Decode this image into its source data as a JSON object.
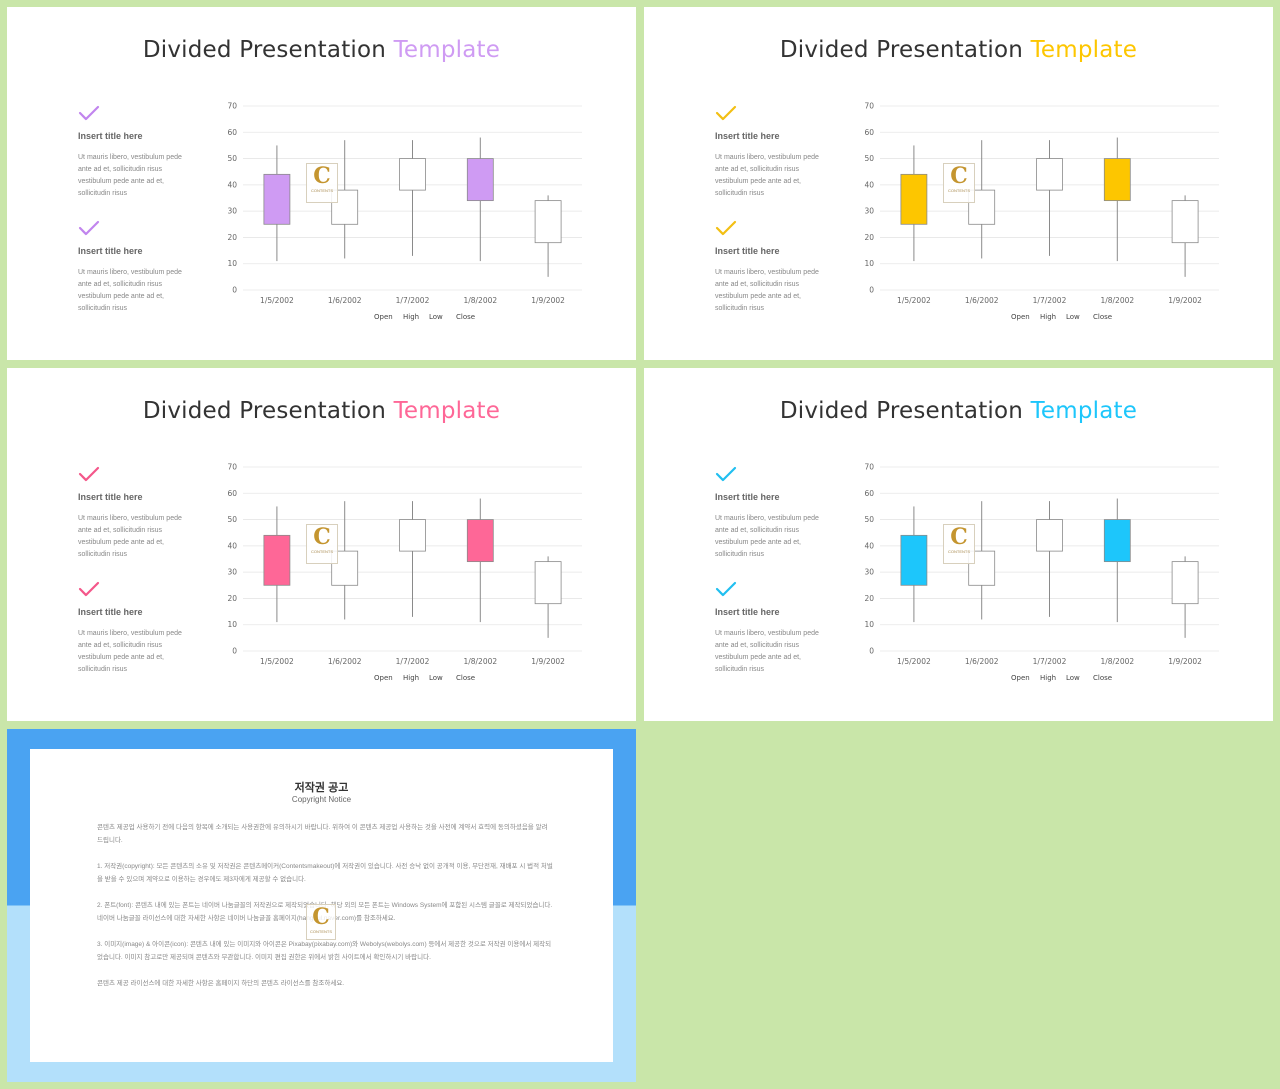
{
  "slides": [
    {
      "title_main": "Divided Presentation",
      "title_accent": "Template",
      "accent": "#cf9bf3",
      "accent_icon": "#c185ee",
      "items": [
        {
          "title": "Insert title here",
          "body": "Ut mauris libero, vestibulum pede ante ad et, sollicitudin risus vestibulum pede ante ad et, sollicitudin risus"
        },
        {
          "title": "Insert title here",
          "body": "Ut mauris libero, vestibulum pede ante ad et, sollicitudin risus vestibulum pede ante ad et, sollicitudin risus"
        }
      ]
    },
    {
      "title_main": "Divided Presentation",
      "title_accent": "Template",
      "accent": "#fdc600",
      "accent_icon": "#f3bf13",
      "items": [
        {
          "title": "Insert title here",
          "body": "Ut mauris libero, vestibulum pede ante ad et, sollicitudin risus vestibulum pede ante ad et, sollicitudin risus"
        },
        {
          "title": "Insert title here",
          "body": "Ut mauris libero, vestibulum pede ante ad et, sollicitudin risus vestibulum pede ante ad et, sollicitudin risus"
        }
      ]
    },
    {
      "title_main": "Divided Presentation",
      "title_accent": "Template",
      "accent": "#fe6797",
      "accent_icon": "#f4578a",
      "items": [
        {
          "title": "Insert title here",
          "body": "Ut mauris libero, vestibulum pede ante ad et, sollicitudin risus vestibulum pede ante ad et, sollicitudin risus"
        },
        {
          "title": "Insert title here",
          "body": "Ut mauris libero, vestibulum pede ante ad et, sollicitudin risus vestibulum pede ante ad et, sollicitudin risus"
        }
      ]
    },
    {
      "title_main": "Divided Presentation",
      "title_accent": "Template",
      "accent": "#1dc6fb",
      "accent_icon": "#21bff0",
      "items": [
        {
          "title": "Insert title here",
          "body": "Ut mauris libero, vestibulum pede ante ad et, sollicitudin risus vestibulum pede ante ad et, sollicitudin risus"
        },
        {
          "title": "Insert title here",
          "body": "Ut mauris libero, vestibulum pede ante ad et, sollicitudin risus vestibulum pede ante ad et, sollicitudin risus"
        }
      ]
    }
  ],
  "chart_data": {
    "type": "candlestick",
    "categories": [
      "1/5/2002",
      "1/6/2002",
      "1/7/2002",
      "1/8/2002",
      "1/9/2002"
    ],
    "open": [
      25,
      38,
      50,
      34,
      34
    ],
    "high": [
      55,
      57,
      57,
      58,
      36
    ],
    "low": [
      11,
      12,
      13,
      11,
      5
    ],
    "close": [
      44,
      25,
      38,
      50,
      18
    ],
    "ylim": [
      0,
      70
    ],
    "yticks": [
      "0",
      "10",
      "20",
      "30",
      "40",
      "50",
      "60",
      "70"
    ],
    "legend": [
      "Open",
      "High",
      "Low",
      "Close"
    ],
    "grid": true,
    "legend_position": "bottom"
  },
  "watermark": {
    "letter": "C",
    "text": "CONTENTS"
  },
  "copyright": {
    "title": "저작권 공고",
    "subtitle": "Copyright Notice",
    "paragraphs": [
      "콘텐츠 제공업 사용하기 전에 다음의 항목에 소개되는 사용권한에 유의하시기 바랍니다. 위하여 이 콘텐츠 제공업 사용하는 것을 사전에 계약서 효력에 동의하셨음을 알려드립니다.",
      "1. 저작권(copyright): 모든 콘텐츠의 소유 및 저작권은 콘텐츠메이커(Contentsmakeout)에 저작권이 있습니다. 사전 승낙 없이 공개적 이용, 무단전재, 재배포 시 법적 처벌을 받을 수 있으며 계약으로 이용하는 경우에도 제3자에게 제공할 수 없습니다.",
      "2. 폰트(font): 콘텐츠 내에 있는 폰트는 네이버 나눔글꼴의 저작권으로 제작되었습니다. 해당 외의 모든 폰트는 Windows System에 포함된 시스템 글꼴로 제작되었습니다. 네이버 나눔글꼴 라이선스에 대한 자세한 사항은 네이버 나눔글꼴 홈페이지(hangeul.naver.com)를 참조하세요.",
      "3. 이미지(image) & 아이콘(icon): 콘텐츠 내에 있는 이미지와 아이콘은 Pixabay(pixabay.com)와 Webolys(webolys.com) 등에서 제공한 것으로 저작권 이용에서 제작되었습니다. 이미지 참고로만 제공되며 콘텐츠와 무관합니다. 이미지 편집 권한은 위에서 밝힌 사이트에서 확인하시기 바랍니다.",
      "콘텐츠 제공 라이선스에 대한 자세한 사항은 홈페이지 하단의 콘텐츠 라이선스를 참조하세요."
    ]
  }
}
